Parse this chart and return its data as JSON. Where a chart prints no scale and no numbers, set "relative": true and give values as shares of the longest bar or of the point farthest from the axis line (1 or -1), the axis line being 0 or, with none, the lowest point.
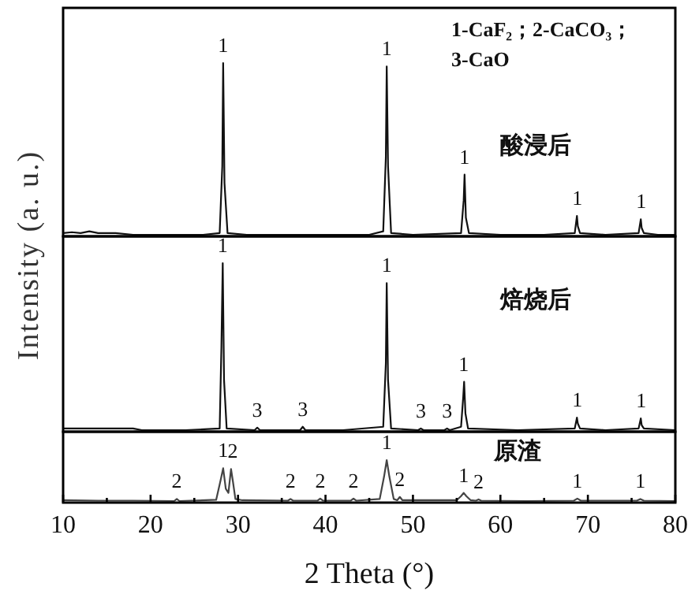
{
  "chart_data": [
    {
      "type": "line",
      "relative": true,
      "xlim": [
        10,
        80
      ],
      "tick_labels": false,
      "legend": false,
      "ylabel": "Intensity (a. u.)",
      "series": [
        {
          "name": "酸浸后",
          "color": "#111111",
          "x": [
            10,
            11,
            12,
            13,
            14,
            16,
            18,
            20,
            22,
            24,
            26,
            27.9,
            28.2,
            28.3,
            28.45,
            28.8,
            31,
            35,
            40,
            45,
            46.6,
            46.9,
            47.0,
            47.15,
            47.5,
            50,
            55.5,
            55.8,
            55.9,
            56.05,
            56.4,
            60,
            65,
            68.5,
            68.75,
            68.85,
            69.1,
            72,
            75.8,
            76.05,
            76.15,
            76.4,
            78,
            80
          ],
          "values": [
            0.01,
            0.015,
            0.01,
            0.02,
            0.01,
            0.01,
            0,
            0,
            0,
            0,
            0,
            0.01,
            0.4,
            1.0,
            0.3,
            0.01,
            0,
            0,
            0,
            0,
            0.02,
            0.45,
            0.98,
            0.4,
            0.01,
            0,
            0.01,
            0.2,
            0.35,
            0.1,
            0.01,
            0,
            0,
            0.01,
            0.11,
            0.05,
            0.01,
            0,
            0.01,
            0.09,
            0.04,
            0.01,
            0,
            0
          ]
        }
      ],
      "annotations": [
        "1-CaF₂；2-CaCO₃；\n3-CaO",
        {
          "text": "1",
          "x": 28.3,
          "y": 1.0
        },
        {
          "text": "1",
          "x": 47.0,
          "y": 0.98
        },
        {
          "text": "1",
          "x": 55.9,
          "y": 0.35
        },
        {
          "text": "1",
          "x": 68.8,
          "y": 0.11
        },
        {
          "text": "1",
          "x": 76.1,
          "y": 0.09
        }
      ]
    },
    {
      "type": "line",
      "relative": true,
      "xlim": [
        10,
        80
      ],
      "tick_labels": false,
      "legend": false,
      "series": [
        {
          "name": "焙烧后",
          "color": "#111111",
          "x": [
            10,
            12,
            14,
            16,
            18,
            19,
            20,
            24,
            27.9,
            28.1,
            28.25,
            28.4,
            28.7,
            31.9,
            32.2,
            32.5,
            37.1,
            37.4,
            37.7,
            42,
            46.6,
            46.9,
            47.0,
            47.15,
            47.5,
            50.6,
            50.9,
            51.2,
            53.6,
            53.9,
            54.2,
            55.5,
            55.75,
            55.85,
            56.0,
            56.3,
            62,
            68.5,
            68.75,
            68.85,
            69.1,
            72,
            75.8,
            76.05,
            76.15,
            76.4,
            80
          ],
          "values": [
            0.01,
            0.01,
            0.01,
            0.01,
            0.01,
            0,
            0,
            0,
            0.01,
            0.5,
            1.0,
            0.3,
            0.01,
            0,
            0.015,
            0,
            0,
            0.02,
            0,
            0,
            0.02,
            0.4,
            0.88,
            0.3,
            0.01,
            0,
            0.01,
            0,
            0,
            0.01,
            0,
            0.02,
            0.2,
            0.29,
            0.1,
            0.01,
            0,
            0.01,
            0.075,
            0.04,
            0.01,
            0,
            0.01,
            0.07,
            0.03,
            0.01,
            0
          ]
        }
      ],
      "annotations": [
        {
          "text": "1",
          "x": 28.25,
          "y": 1.0
        },
        {
          "text": "1",
          "x": 47.0,
          "y": 0.88
        },
        {
          "text": "1",
          "x": 55.8,
          "y": 0.29
        },
        {
          "text": "1",
          "x": 68.8,
          "y": 0.075
        },
        {
          "text": "1",
          "x": 76.1,
          "y": 0.07
        },
        {
          "text": "3",
          "x": 32.2,
          "y": 0.015
        },
        {
          "text": "3",
          "x": 37.4,
          "y": 0.02
        },
        {
          "text": "3",
          "x": 50.9,
          "y": 0.01
        },
        {
          "text": "3",
          "x": 53.9,
          "y": 0.01
        }
      ]
    },
    {
      "type": "line",
      "relative": true,
      "xlim": [
        10,
        80
      ],
      "tick_labels": "x",
      "legend": false,
      "xlabel": "2 Theta (°)",
      "xticks": [
        10,
        {
          "value": 15,
          "label": null
        },
        20,
        {
          "value": 25,
          "label": null
        },
        30,
        {
          "value": 35,
          "label": null
        },
        40,
        {
          "value": 45,
          "label": null
        },
        50,
        {
          "value": 55,
          "label": null
        },
        60,
        {
          "value": 65,
          "label": null
        },
        70,
        {
          "value": 75,
          "label": null
        },
        80
      ],
      "series": [
        {
          "name": "原渣",
          "color": "#444444",
          "x": [
            10,
            14,
            18,
            22.7,
            23.0,
            23.3,
            27.5,
            28.0,
            28.3,
            28.6,
            28.9,
            29.2,
            29.4,
            29.7,
            30.5,
            35.7,
            36.0,
            36.3,
            39.1,
            39.4,
            39.7,
            42.9,
            43.2,
            43.5,
            46.2,
            46.7,
            47.0,
            47.3,
            47.8,
            48.2,
            48.5,
            48.8,
            55,
            55.5,
            55.8,
            56.1,
            56.6,
            57.2,
            57.5,
            57.8,
            63,
            68.4,
            68.8,
            69.2,
            75.6,
            76.0,
            76.4,
            80
          ],
          "values": [
            0.02,
            0.01,
            0.01,
            0,
            0.05,
            0,
            0.03,
            0.5,
            0.8,
            0.3,
            0.2,
            0.78,
            0.5,
            0.05,
            0.02,
            0.01,
            0.05,
            0.01,
            0.01,
            0.06,
            0.01,
            0.01,
            0.06,
            0.01,
            0.05,
            0.6,
            1.0,
            0.6,
            0.05,
            0.02,
            0.1,
            0.02,
            0.02,
            0.12,
            0.2,
            0.12,
            0.02,
            0.01,
            0.04,
            0.01,
            0,
            0.01,
            0.06,
            0.01,
            0.01,
            0.05,
            0.01,
            0
          ]
        }
      ],
      "annotations": [
        {
          "text": "2",
          "x": 23.0,
          "y": 0.05
        },
        {
          "text": "1",
          "x": 28.3,
          "y": 0.8
        },
        {
          "text": "2",
          "x": 29.4,
          "y": 0.78
        },
        {
          "text": "2",
          "x": 36.0,
          "y": 0.05
        },
        {
          "text": "2",
          "x": 39.4,
          "y": 0.06
        },
        {
          "text": "2",
          "x": 43.2,
          "y": 0.06
        },
        {
          "text": "1",
          "x": 47.0,
          "y": 1.0
        },
        {
          "text": "2",
          "x": 48.5,
          "y": 0.1
        },
        {
          "text": "1",
          "x": 55.8,
          "y": 0.2
        },
        {
          "text": "2",
          "x": 57.5,
          "y": 0.04
        },
        {
          "text": "1",
          "x": 68.8,
          "y": 0.06
        },
        {
          "text": "1",
          "x": 76.0,
          "y": 0.05
        }
      ]
    }
  ]
}
